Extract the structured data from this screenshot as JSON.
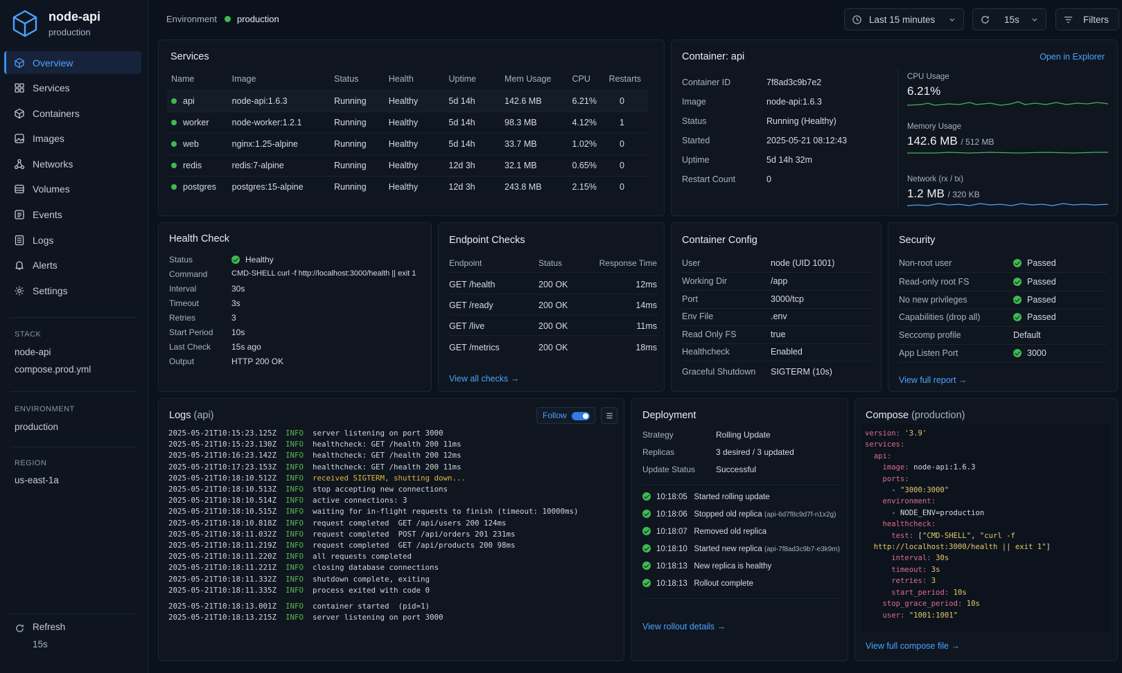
{
  "app": {
    "name": "node-api",
    "env": "production"
  },
  "nav": [
    {
      "label": "Overview",
      "icon": "overview-icon",
      "active": true
    },
    {
      "label": "Services",
      "icon": "services-icon"
    },
    {
      "label": "Containers",
      "icon": "containers-icon"
    },
    {
      "label": "Images",
      "icon": "images-icon"
    },
    {
      "label": "Networks",
      "icon": "networks-icon"
    },
    {
      "label": "Volumes",
      "icon": "volumes-icon"
    },
    {
      "label": "Events",
      "icon": "events-icon"
    },
    {
      "label": "Logs",
      "icon": "logs-icon"
    },
    {
      "label": "Alerts",
      "icon": "bell-icon"
    },
    {
      "label": "Settings",
      "icon": "gear-icon"
    }
  ],
  "sidebar": {
    "stack_label": "STACK",
    "stack_name": "node-api",
    "stack_file": "compose.prod.yml",
    "environment_label": "ENVIRONMENT",
    "environment": "production",
    "region_label": "REGION",
    "region": "us-east-1a",
    "refresh_label": "Refresh",
    "refresh_interval": "15s"
  },
  "topbar": {
    "env_label": "Environment",
    "env_value": "production",
    "time_range": "Last 15 minutes",
    "refresh": "15s",
    "filters": "Filters"
  },
  "services": {
    "title": "Services",
    "columns": [
      "Name",
      "Image",
      "Status",
      "Health",
      "Uptime",
      "Mem Usage",
      "CPU",
      "Restarts"
    ],
    "rows": [
      [
        "api",
        "node-api:1.6.3",
        "Running",
        "Healthy",
        "5d 14h",
        "142.6 MB",
        "6.21%",
        "0"
      ],
      [
        "worker",
        "node-worker:1.2.1",
        "Running",
        "Healthy",
        "5d 14h",
        "98.3 MB",
        "4.12%",
        "1"
      ],
      [
        "web",
        "nginx:1.25-alpine",
        "Running",
        "Healthy",
        "5d 14h",
        "33.7 MB",
        "1.02%",
        "0"
      ],
      [
        "redis",
        "redis:7-alpine",
        "Running",
        "Healthy",
        "12d 3h",
        "32.1 MB",
        "0.65%",
        "0"
      ],
      [
        "postgres",
        "postgres:15-alpine",
        "Running",
        "Healthy",
        "12d 3h",
        "243.8 MB",
        "2.15%",
        "0"
      ]
    ]
  },
  "container": {
    "title": "Container: api",
    "open_link": "Open in Explorer",
    "fields": [
      [
        "Container ID",
        "7f8ad3c9b7e2"
      ],
      [
        "Image",
        "node-api:1.6.3"
      ],
      [
        "Status",
        "Running (Healthy)"
      ],
      [
        "Started",
        "2025-05-21 08:12:43"
      ],
      [
        "Uptime",
        "5d 14h 32m"
      ],
      [
        "Restart Count",
        "0"
      ]
    ],
    "cpu_label": "CPU Usage",
    "cpu_value": "6.21%",
    "mem_label": "Memory Usage",
    "mem_value": "142.6 MB",
    "mem_total": "/ 512 MB",
    "net_label": "Network (rx / tx)",
    "net_rx": "1.2 MB",
    "net_tx": "/ 320 KB"
  },
  "health": {
    "title": "Health Check",
    "fields": [
      [
        "Status",
        "Healthy"
      ],
      [
        "Command",
        "CMD-SHELL curl -f  http://localhost:3000/health || exit 1"
      ],
      [
        "Interval",
        "30s"
      ],
      [
        "Timeout",
        "3s"
      ],
      [
        "Retries",
        "3"
      ],
      [
        "Start Period",
        "10s"
      ],
      [
        "Last Check",
        "15s ago"
      ],
      [
        "Output",
        "HTTP 200 OK"
      ]
    ]
  },
  "endpoints": {
    "title": "Endpoint Checks",
    "columns": [
      "Endpoint",
      "Status",
      "Response Time"
    ],
    "rows": [
      [
        "GET /health",
        "200 OK",
        "12ms"
      ],
      [
        "GET /ready",
        "200 OK",
        "14ms"
      ],
      [
        "GET /live",
        "200 OK",
        "11ms"
      ],
      [
        "GET /metrics",
        "200 OK",
        "18ms"
      ]
    ],
    "link": "View all checks →"
  },
  "config": {
    "title": "Container Config",
    "fields": [
      [
        "User",
        "node (UID 1001)"
      ],
      [
        "Working Dir",
        "/app"
      ],
      [
        "Port",
        "3000/tcp"
      ],
      [
        "Env File",
        ".env"
      ],
      [
        "Read Only FS",
        "true"
      ],
      [
        "Healthcheck",
        "Enabled"
      ],
      [
        "Graceful Shutdown",
        "SIGTERM (10s)"
      ]
    ]
  },
  "security": {
    "title": "Security",
    "rows": [
      [
        "Non-root user",
        "Passed"
      ],
      [
        "Read-only root FS",
        "Passed"
      ],
      [
        "No new privileges",
        "Passed"
      ],
      [
        "Capabilities (drop all)",
        "Passed"
      ],
      [
        "Seccomp profile",
        "Default"
      ],
      [
        "App Listen Port",
        "3000"
      ]
    ],
    "link": "View full report →"
  },
  "logs": {
    "title": "Logs",
    "title_sub": "(api)",
    "follow": "Follow",
    "lines": [
      [
        "2025-05-21T10:15:23.125Z",
        "INFO",
        "server listening on port 3000"
      ],
      [
        "2025-05-21T10:15:23.130Z",
        "INFO",
        "healthcheck: GET /health 200 11ms"
      ],
      [
        "2025-05-21T10:16:23.142Z",
        "INFO",
        "healthcheck: GET /health 200 12ms"
      ],
      [
        "2025-05-21T10:17:23.153Z",
        "INFO",
        "healthcheck: GET /health 200 11ms"
      ],
      [
        "2025-05-21T10:18:10.512Z",
        "INFO",
        "received SIGTERM, shutting down..."
      ],
      [
        "2025-05-21T10:18:10.513Z",
        "INFO",
        "stop accepting new connections"
      ],
      [
        "2025-05-21T10:18:10.514Z",
        "INFO",
        "active connections: 3"
      ],
      [
        "2025-05-21T10:18:10.515Z",
        "INFO",
        "waiting for in-flight requests to finish (timeout: 10000ms)"
      ],
      [
        "2025-05-21T10:18:10.818Z",
        "INFO",
        "request completed  GET /api/users 200 124ms"
      ],
      [
        "2025-05-21T10:18:11.032Z",
        "INFO",
        "request completed  POST /api/orders 201 231ms"
      ],
      [
        "2025-05-21T10:18:11.219Z",
        "INFO",
        "request completed  GET /api/products 200 98ms"
      ],
      [
        "2025-05-21T10:18:11.220Z",
        "INFO",
        "all requests completed"
      ],
      [
        "2025-05-21T10:18:11.221Z",
        "INFO",
        "closing database connections"
      ],
      [
        "2025-05-21T10:18:11.332Z",
        "INFO",
        "shutdown complete, exiting"
      ],
      [
        "2025-05-21T10:18:11.335Z",
        "INFO",
        "process exited with code 0"
      ],
      [
        "2025-05-21T10:18:13.001Z",
        "INFO",
        "container started  (pid=1)"
      ],
      [
        "2025-05-21T10:18:13.215Z",
        "INFO",
        "server listening on port 3000"
      ]
    ]
  },
  "deployment": {
    "title": "Deployment",
    "fields": [
      [
        "Strategy",
        "Rolling Update"
      ],
      [
        "Replicas",
        "3 desired / 3 updated"
      ],
      [
        "Update Status",
        "Successful"
      ]
    ],
    "events": [
      [
        "10:18:05",
        "Started rolling update",
        ""
      ],
      [
        "10:18:06",
        "Stopped old replica",
        "(api-6d7f8c9d7f-n1x2g)"
      ],
      [
        "10:18:07",
        "Removed old replica",
        ""
      ],
      [
        "10:18:10",
        "Started new replica",
        "(api-7f8ad3c9b7-e3k9m)"
      ],
      [
        "10:18:13",
        "New replica is healthy",
        ""
      ],
      [
        "10:18:13",
        "Rollout complete",
        ""
      ]
    ],
    "link": "View rollout details →"
  },
  "compose": {
    "title": "Compose",
    "title_sub": "(production)",
    "link": "View full compose file →"
  },
  "colors": {
    "accent": "#4da3ff",
    "success": "#3fb950",
    "warn": "#e3b341",
    "bg": "#0b121b"
  }
}
